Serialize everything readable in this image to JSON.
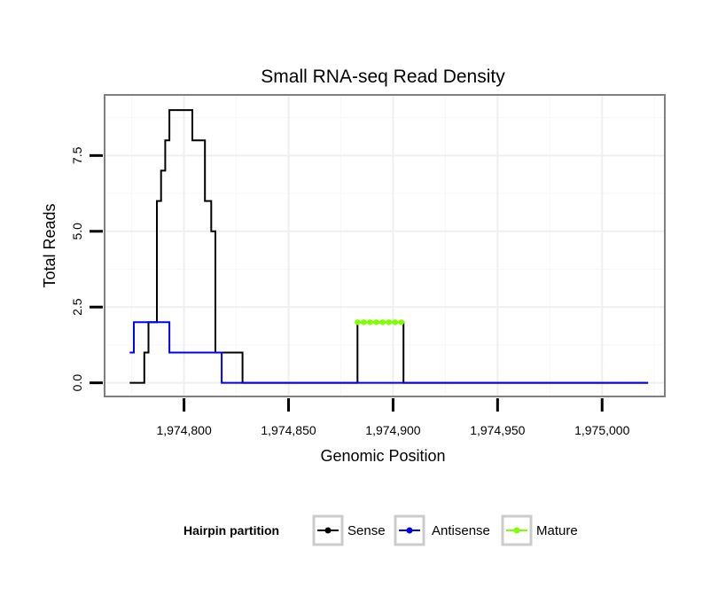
{
  "chart_data": {
    "type": "line",
    "title": "Small RNA-seq Read Density",
    "xlabel": "Genomic Position",
    "ylabel": "Total Reads",
    "xlim": [
      1974762,
      1975030
    ],
    "ylim": [
      -0.45,
      9.5
    ],
    "x_ticks": [
      1974800,
      1974850,
      1974900,
      1974950,
      1975000
    ],
    "x_tick_labels": [
      "1,974,800",
      "1,974,850",
      "1,974,900",
      "1,974,950",
      "1,975,000"
    ],
    "y_ticks": [
      0.0,
      2.5,
      5.0,
      7.5
    ],
    "y_tick_labels": [
      "0.0",
      "2.5",
      "5.0",
      "7.5"
    ],
    "grid": true,
    "legend": {
      "title": "Hairpin partition",
      "position": "bottom",
      "entries": [
        "Sense",
        "Antisense",
        "Mature"
      ]
    },
    "series": [
      {
        "name": "Sense",
        "color": "#000000",
        "step": true,
        "x": [
          1974774,
          1974780,
          1974781,
          1974782,
          1974783,
          1974786,
          1974787,
          1974788,
          1974789,
          1974790,
          1974791,
          1974792,
          1974793,
          1974798,
          1974803,
          1974804,
          1974808,
          1974809,
          1974810,
          1974811,
          1974812,
          1974813,
          1974815,
          1974827,
          1974828,
          1974882,
          1974883,
          1974884,
          1974904,
          1974905,
          1975022
        ],
        "y": [
          0,
          0,
          1,
          1,
          2,
          2,
          6,
          6,
          7,
          7,
          8,
          8,
          9,
          9,
          9,
          8,
          8,
          8,
          6,
          6,
          6,
          5,
          1,
          1,
          0,
          0,
          2,
          2,
          2,
          0,
          0
        ]
      },
      {
        "name": "Antisense",
        "color": "#0000ff",
        "step": true,
        "x": [
          1974774,
          1974775,
          1974776,
          1974792,
          1974793,
          1974817,
          1974818,
          1974904,
          1974905,
          1975022
        ],
        "y": [
          1,
          1,
          2,
          2,
          1,
          1,
          0,
          0,
          0,
          0
        ]
      },
      {
        "name": "Mature",
        "color": "#7fff00",
        "step": true,
        "x": [
          1974883,
          1974886,
          1974889,
          1974892,
          1974895,
          1974898,
          1974901,
          1974904
        ],
        "y": [
          2,
          2,
          2,
          2,
          2,
          2,
          2,
          2
        ]
      }
    ]
  }
}
